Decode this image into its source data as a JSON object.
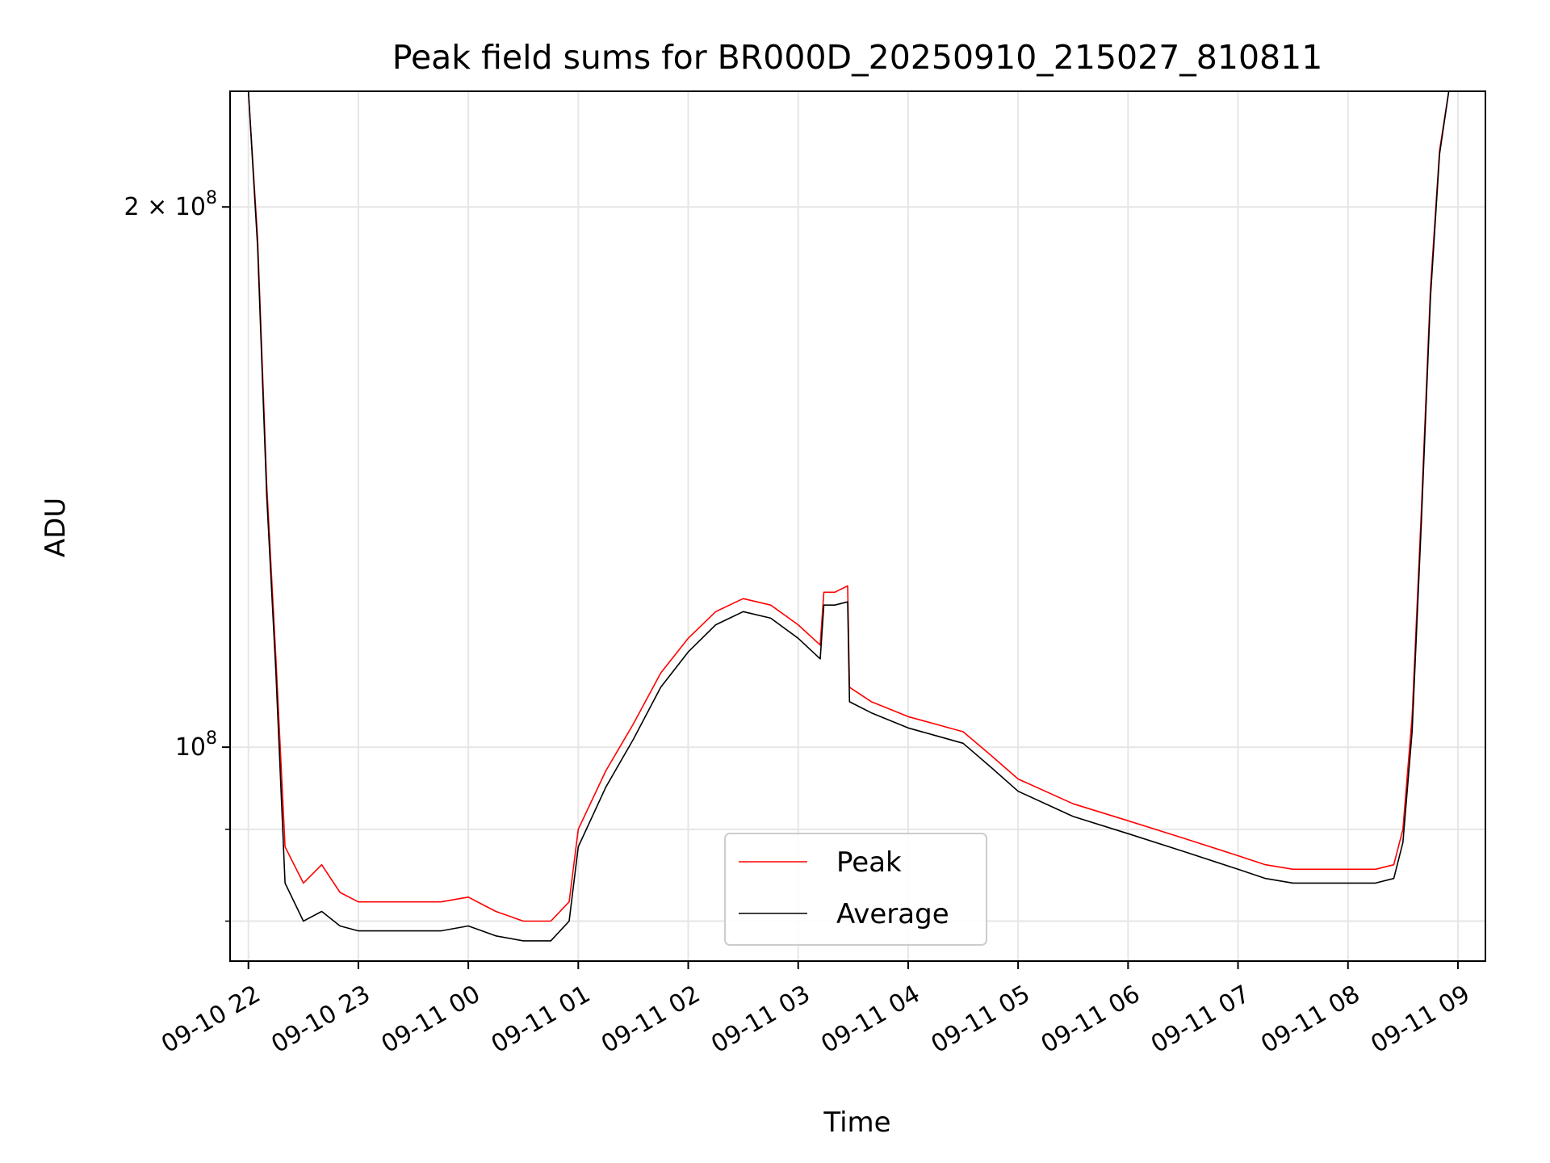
{
  "chart_data": {
    "type": "line",
    "title": "Peak field sums for BR000D_20250910_215027_810811",
    "xlabel": "Time",
    "ylabel": "ADU",
    "y_scale": "log",
    "ylim": [
      76000000,
      232000000
    ],
    "xlim": [
      "2025-09-10 21:50",
      "2025-09-11 09:15"
    ],
    "grid": true,
    "legend_position": "lower-center",
    "x_tick_labels": [
      "09-10 22",
      "09-10 23",
      "09-11 00",
      "09-11 01",
      "09-11 02",
      "09-11 03",
      "09-11 04",
      "09-11 05",
      "09-11 06",
      "09-11 07",
      "09-11 08",
      "09-11 09"
    ],
    "x_ticks": [
      "2025-09-10 22:00",
      "2025-09-10 23:00",
      "2025-09-11 00:00",
      "2025-09-11 01:00",
      "2025-09-11 02:00",
      "2025-09-11 03:00",
      "2025-09-11 04:00",
      "2025-09-11 05:00",
      "2025-09-11 06:00",
      "2025-09-11 07:00",
      "2025-09-11 08:00",
      "2025-09-11 09:00"
    ],
    "y_tick_labels": [
      {
        "value": 200000000,
        "base": "2 × 10",
        "exp": "8"
      },
      {
        "value": 100000000,
        "base": "10",
        "exp": "8"
      }
    ],
    "series": [
      {
        "name": "Peak",
        "color": "#ff0000",
        "x": [
          "2025-09-10 22:00",
          "2025-09-10 22:05",
          "2025-09-10 22:10",
          "2025-09-10 22:15",
          "2025-09-10 22:20",
          "2025-09-10 22:30",
          "2025-09-10 22:40",
          "2025-09-10 22:50",
          "2025-09-10 23:00",
          "2025-09-10 23:15",
          "2025-09-10 23:30",
          "2025-09-10 23:45",
          "2025-09-11 00:00",
          "2025-09-11 00:15",
          "2025-09-11 00:30",
          "2025-09-11 00:45",
          "2025-09-11 00:55",
          "2025-09-11 01:00",
          "2025-09-11 01:15",
          "2025-09-11 01:30",
          "2025-09-11 01:45",
          "2025-09-11 02:00",
          "2025-09-11 02:15",
          "2025-09-11 02:30",
          "2025-09-11 02:45",
          "2025-09-11 03:00",
          "2025-09-11 03:12",
          "2025-09-11 03:14",
          "2025-09-11 03:20",
          "2025-09-11 03:27",
          "2025-09-11 03:28",
          "2025-09-11 03:40",
          "2025-09-11 04:00",
          "2025-09-11 04:15",
          "2025-09-11 04:30",
          "2025-09-11 04:45",
          "2025-09-11 05:00",
          "2025-09-11 05:30",
          "2025-09-11 06:00",
          "2025-09-11 06:30",
          "2025-09-11 07:00",
          "2025-09-11 07:15",
          "2025-09-11 07:30",
          "2025-09-11 07:45",
          "2025-09-11 08:00",
          "2025-09-11 08:15",
          "2025-09-11 08:25",
          "2025-09-11 08:30",
          "2025-09-11 08:35",
          "2025-09-11 08:40",
          "2025-09-11 08:45",
          "2025-09-11 08:50",
          "2025-09-11 08:55"
        ],
        "values": [
          232000000,
          192000000,
          140000000,
          112000000,
          88000000,
          84000000,
          86000000,
          83000000,
          82000000,
          82000000,
          82000000,
          82000000,
          82500000,
          81000000,
          80000000,
          80000000,
          82000000,
          90000000,
          97000000,
          103000000,
          110000000,
          115000000,
          119000000,
          121000000,
          120000000,
          117000000,
          114000000,
          122000000,
          122000000,
          123000000,
          108000000,
          106000000,
          104000000,
          103000000,
          102000000,
          99000000,
          96000000,
          93000000,
          91000000,
          89000000,
          87000000,
          86000000,
          85500000,
          85500000,
          85500000,
          85500000,
          86000000,
          90000000,
          104000000,
          135000000,
          180000000,
          215000000,
          232000000
        ]
      },
      {
        "name": "Average",
        "color": "#000000",
        "x": [
          "2025-09-10 22:00",
          "2025-09-10 22:05",
          "2025-09-10 22:10",
          "2025-09-10 22:15",
          "2025-09-10 22:20",
          "2025-09-10 22:30",
          "2025-09-10 22:40",
          "2025-09-10 22:50",
          "2025-09-10 23:00",
          "2025-09-10 23:15",
          "2025-09-10 23:30",
          "2025-09-10 23:45",
          "2025-09-11 00:00",
          "2025-09-11 00:15",
          "2025-09-11 00:30",
          "2025-09-11 00:45",
          "2025-09-11 00:55",
          "2025-09-11 01:00",
          "2025-09-11 01:15",
          "2025-09-11 01:30",
          "2025-09-11 01:45",
          "2025-09-11 02:00",
          "2025-09-11 02:15",
          "2025-09-11 02:30",
          "2025-09-11 02:45",
          "2025-09-11 03:00",
          "2025-09-11 03:12",
          "2025-09-11 03:14",
          "2025-09-11 03:20",
          "2025-09-11 03:27",
          "2025-09-11 03:28",
          "2025-09-11 03:40",
          "2025-09-11 04:00",
          "2025-09-11 04:15",
          "2025-09-11 04:30",
          "2025-09-11 04:45",
          "2025-09-11 05:00",
          "2025-09-11 05:30",
          "2025-09-11 06:00",
          "2025-09-11 06:30",
          "2025-09-11 07:00",
          "2025-09-11 07:15",
          "2025-09-11 07:30",
          "2025-09-11 07:45",
          "2025-09-11 08:00",
          "2025-09-11 08:15",
          "2025-09-11 08:25",
          "2025-09-11 08:30",
          "2025-09-11 08:35",
          "2025-09-11 08:40",
          "2025-09-11 08:45",
          "2025-09-11 08:50",
          "2025-09-11 08:55"
        ],
        "values": [
          232000000,
          190000000,
          138000000,
          110000000,
          84000000,
          80000000,
          81000000,
          79500000,
          79000000,
          79000000,
          79000000,
          79000000,
          79500000,
          78500000,
          78000000,
          78000000,
          80000000,
          88000000,
          95000000,
          101000000,
          108000000,
          113000000,
          117000000,
          119000000,
          118000000,
          115000000,
          112000000,
          120000000,
          120000000,
          120500000,
          106000000,
          104500000,
          102500000,
          101500000,
          100500000,
          97500000,
          94500000,
          91500000,
          89500000,
          87500000,
          85500000,
          84500000,
          84000000,
          84000000,
          84000000,
          84000000,
          84500000,
          88500000,
          102000000,
          133000000,
          178000000,
          214000000,
          232000000
        ]
      }
    ]
  }
}
